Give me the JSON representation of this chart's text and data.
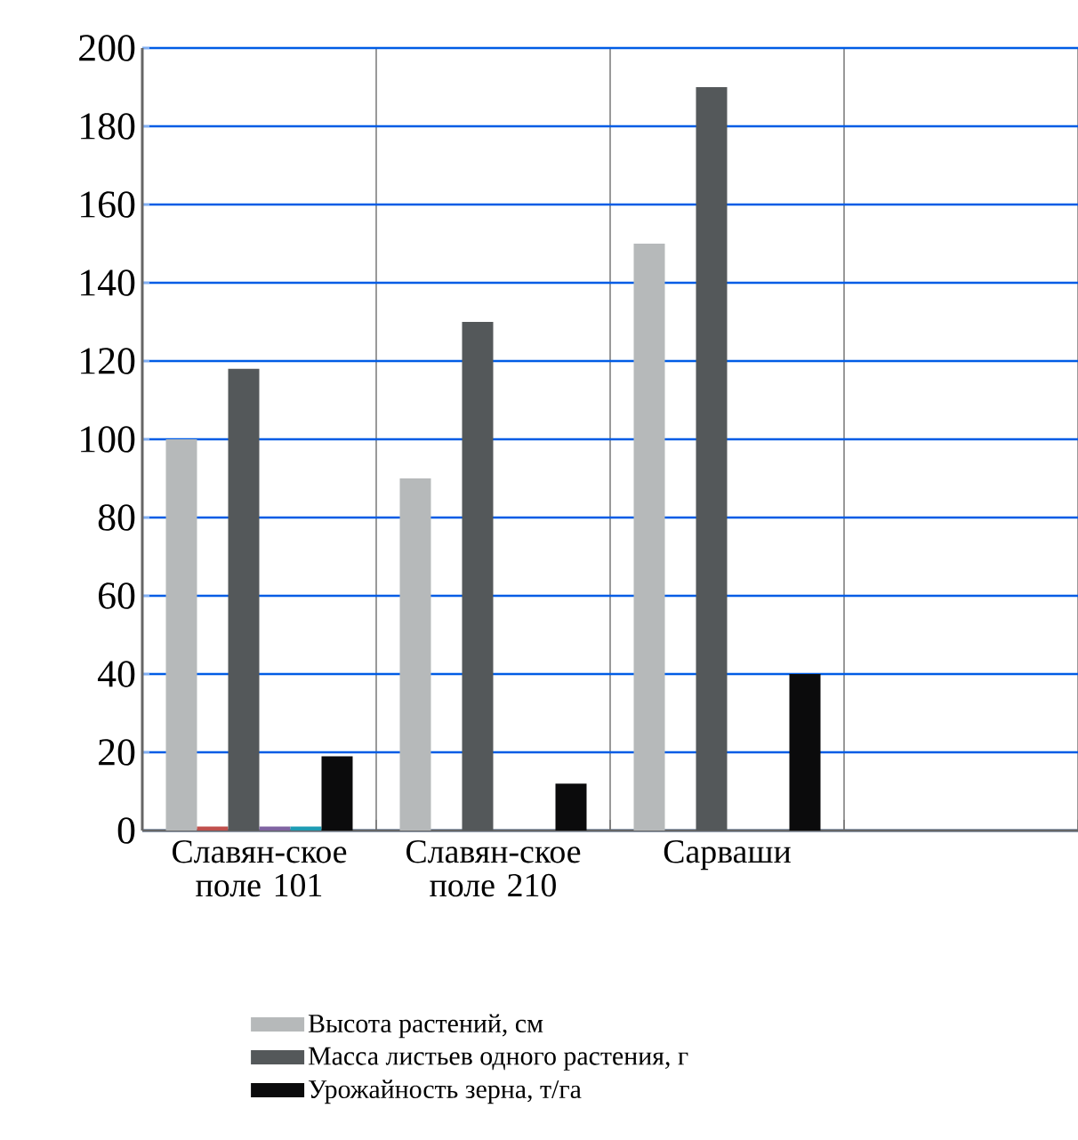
{
  "chart_data": {
    "type": "bar",
    "categories": [
      "Славян-ское поле 101",
      "Славян-ское поле 210",
      "Сарваши",
      null
    ],
    "series": [
      {
        "name": "Высота растений, см",
        "color": "#b6b9ba",
        "values": [
          100,
          90,
          150,
          null
        ]
      },
      {
        "color": "#c0504d",
        "values": [
          1,
          null,
          null,
          null
        ]
      },
      {
        "name": "Масса листьев одного растения, г",
        "color": "#54585a",
        "values": [
          118,
          130,
          190,
          null
        ]
      },
      {
        "color": "#8064a2",
        "values": [
          1,
          null,
          null,
          null
        ]
      },
      {
        "color": "#1e9cb4",
        "values": [
          1,
          null,
          null,
          null
        ]
      },
      {
        "name": "Урожайность зерна, т/га",
        "color": "#0b0b0c",
        "values": [
          19,
          12,
          40,
          null
        ]
      }
    ],
    "ylim": [
      0,
      200
    ],
    "yticks": [
      0,
      20,
      40,
      60,
      80,
      100,
      120,
      140,
      160,
      180,
      200
    ],
    "grid": true,
    "legend": "bottom"
  }
}
